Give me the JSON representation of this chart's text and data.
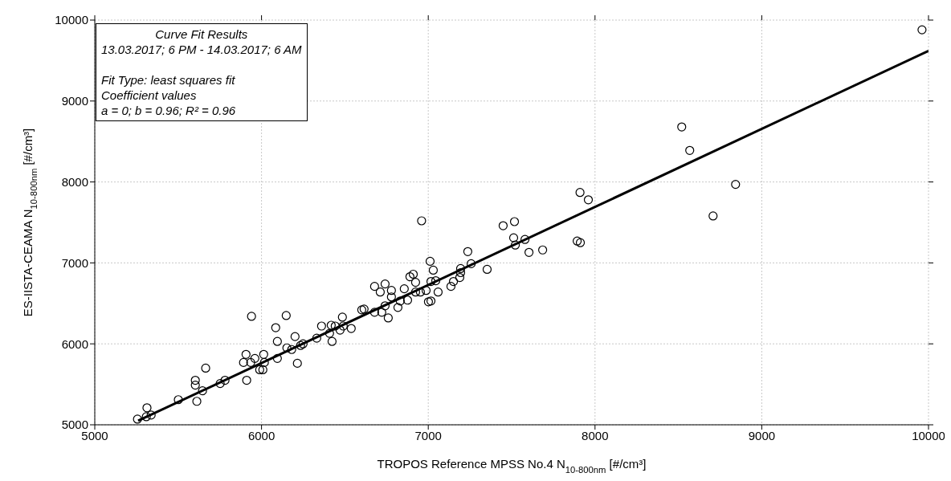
{
  "chart_data": {
    "type": "scatter",
    "xlabel": "TROPOS Reference MPSS No.4 N$_{10-800nm}$ [#/cm³]",
    "ylabel": "ES-IISTA-CEAMA N$_{10-800nm}$ [#/cm³]",
    "xlim": [
      5000,
      10000
    ],
    "ylim": [
      5000,
      10000
    ],
    "xticks": [
      5000,
      6000,
      7000,
      8000,
      9000,
      10000
    ],
    "yticks": [
      5000,
      6000,
      7000,
      8000,
      9000,
      10000
    ],
    "grid": true,
    "annotations": [
      "Curve Fit Results",
      "13.03.2017; 6 PM - 14.03.2017; 6 AM",
      "Fit Type: least squares fit",
      "Coefficient values",
      "a = 0; b = 0.96; R² = 0.96"
    ],
    "series": [
      {
        "marker": "circle",
        "color": "#000000",
        "x": [
          5256,
          5309,
          5313,
          5338,
          5501,
          5612,
          5603,
          5603,
          5646,
          5665,
          5752,
          5781,
          5911,
          5892,
          5907,
          5940,
          5960,
          5935,
          6013,
          6017,
          5989,
          6008,
          6085,
          6148,
          6095,
          6095,
          6152,
          6201,
          6181,
          6215,
          6249,
          6234,
          6331,
          6360,
          6418,
          6442,
          6408,
          6423,
          6485,
          6490,
          6538,
          6601,
          6471,
          6615,
          6678,
          6712,
          6741,
          6779,
          6779,
          6678,
          6721,
          6741,
          6760,
          6818,
          6832,
          6856,
          6876,
          6890,
          6910,
          6924,
          6924,
          6953,
          6987,
          7011,
          7030,
          7016,
          7045,
          7059,
          7001,
          7016,
          7136,
          7151,
          7189,
          7194,
          7194,
          7237,
          7257,
          6960,
          7353,
          7449,
          7517,
          7512,
          7522,
          7580,
          7604,
          7686,
          7893,
          7912,
          7910,
          7960,
          8708,
          8520,
          8568,
          8843,
          9961
        ],
        "values": [
          5070,
          5100,
          5210,
          5120,
          5310,
          5290,
          5550,
          5490,
          5420,
          5700,
          5510,
          5550,
          5550,
          5770,
          5870,
          6340,
          5820,
          5770,
          5870,
          5770,
          5680,
          5680,
          6200,
          6350,
          6030,
          5820,
          5950,
          6090,
          5930,
          5760,
          6000,
          5980,
          6070,
          6220,
          6230,
          6220,
          6130,
          6030,
          6330,
          6220,
          6190,
          6420,
          6170,
          6430,
          6710,
          6640,
          6740,
          6660,
          6580,
          6390,
          6390,
          6470,
          6320,
          6450,
          6530,
          6680,
          6540,
          6830,
          6860,
          6760,
          6640,
          6640,
          6660,
          7020,
          6910,
          6770,
          6780,
          6640,
          6520,
          6530,
          6710,
          6770,
          6820,
          6880,
          6930,
          7140,
          6990,
          7520,
          6920,
          7460,
          7510,
          7310,
          7220,
          7290,
          7130,
          7160,
          7270,
          7250,
          7870,
          7780,
          7580,
          8680,
          8390,
          7970,
          9880
        ]
      },
      {
        "type": "line",
        "color": "#000000",
        "x": [
          5260,
          10000
        ],
        "values": [
          5050,
          9620
        ]
      }
    ]
  }
}
